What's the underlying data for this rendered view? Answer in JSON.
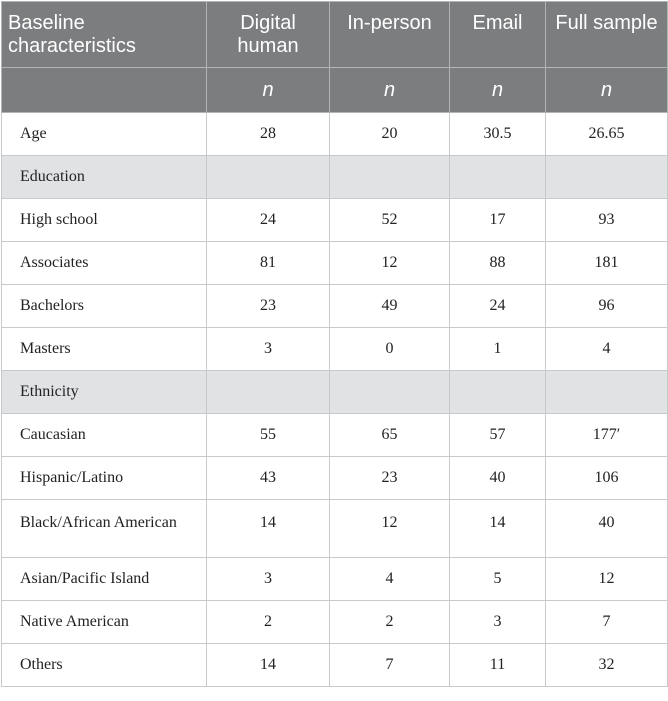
{
  "header": {
    "col0": "Baseline characteristics",
    "col1": "Digital human",
    "col2": "In-person",
    "col3": "Email",
    "col4": "Full sample",
    "sub0": "",
    "sub1": "n",
    "sub2": "n",
    "sub3": "n",
    "sub4": "n"
  },
  "rows": [
    {
      "label": "Age",
      "v1": "28",
      "v2": "20",
      "v3": "30.5",
      "v4": "26.65"
    },
    {
      "label": "Education",
      "v1": "",
      "v2": "",
      "v3": "",
      "v4": ""
    },
    {
      "label": "High school",
      "v1": "24",
      "v2": "52",
      "v3": "17",
      "v4": "93"
    },
    {
      "label": "Associates",
      "v1": "81",
      "v2": "12",
      "v3": "88",
      "v4": "181"
    },
    {
      "label": "Bachelors",
      "v1": "23",
      "v2": "49",
      "v3": "24",
      "v4": "96"
    },
    {
      "label": "Masters",
      "v1": "3",
      "v2": "0",
      "v3": "1",
      "v4": "4"
    },
    {
      "label": "Ethnicity",
      "v1": "",
      "v2": "",
      "v3": "",
      "v4": ""
    },
    {
      "label": "Caucasian",
      "v1": "55",
      "v2": "65",
      "v3": "57",
      "v4": "177′"
    },
    {
      "label": "Hispanic/Latino",
      "v1": "43",
      "v2": "23",
      "v3": "40",
      "v4": "106"
    },
    {
      "label": "Black/African American",
      "v1": "14",
      "v2": "12",
      "v3": "14",
      "v4": "40"
    },
    {
      "label": "Asian/Pacific Island",
      "v1": "3",
      "v2": "4",
      "v3": "5",
      "v4": "12"
    },
    {
      "label": "Native American",
      "v1": "2",
      "v2": "2",
      "v3": "3",
      "v4": "7"
    },
    {
      "label": "Others",
      "v1": "14",
      "v2": "7",
      "v3": "11",
      "v4": "32"
    }
  ]
}
